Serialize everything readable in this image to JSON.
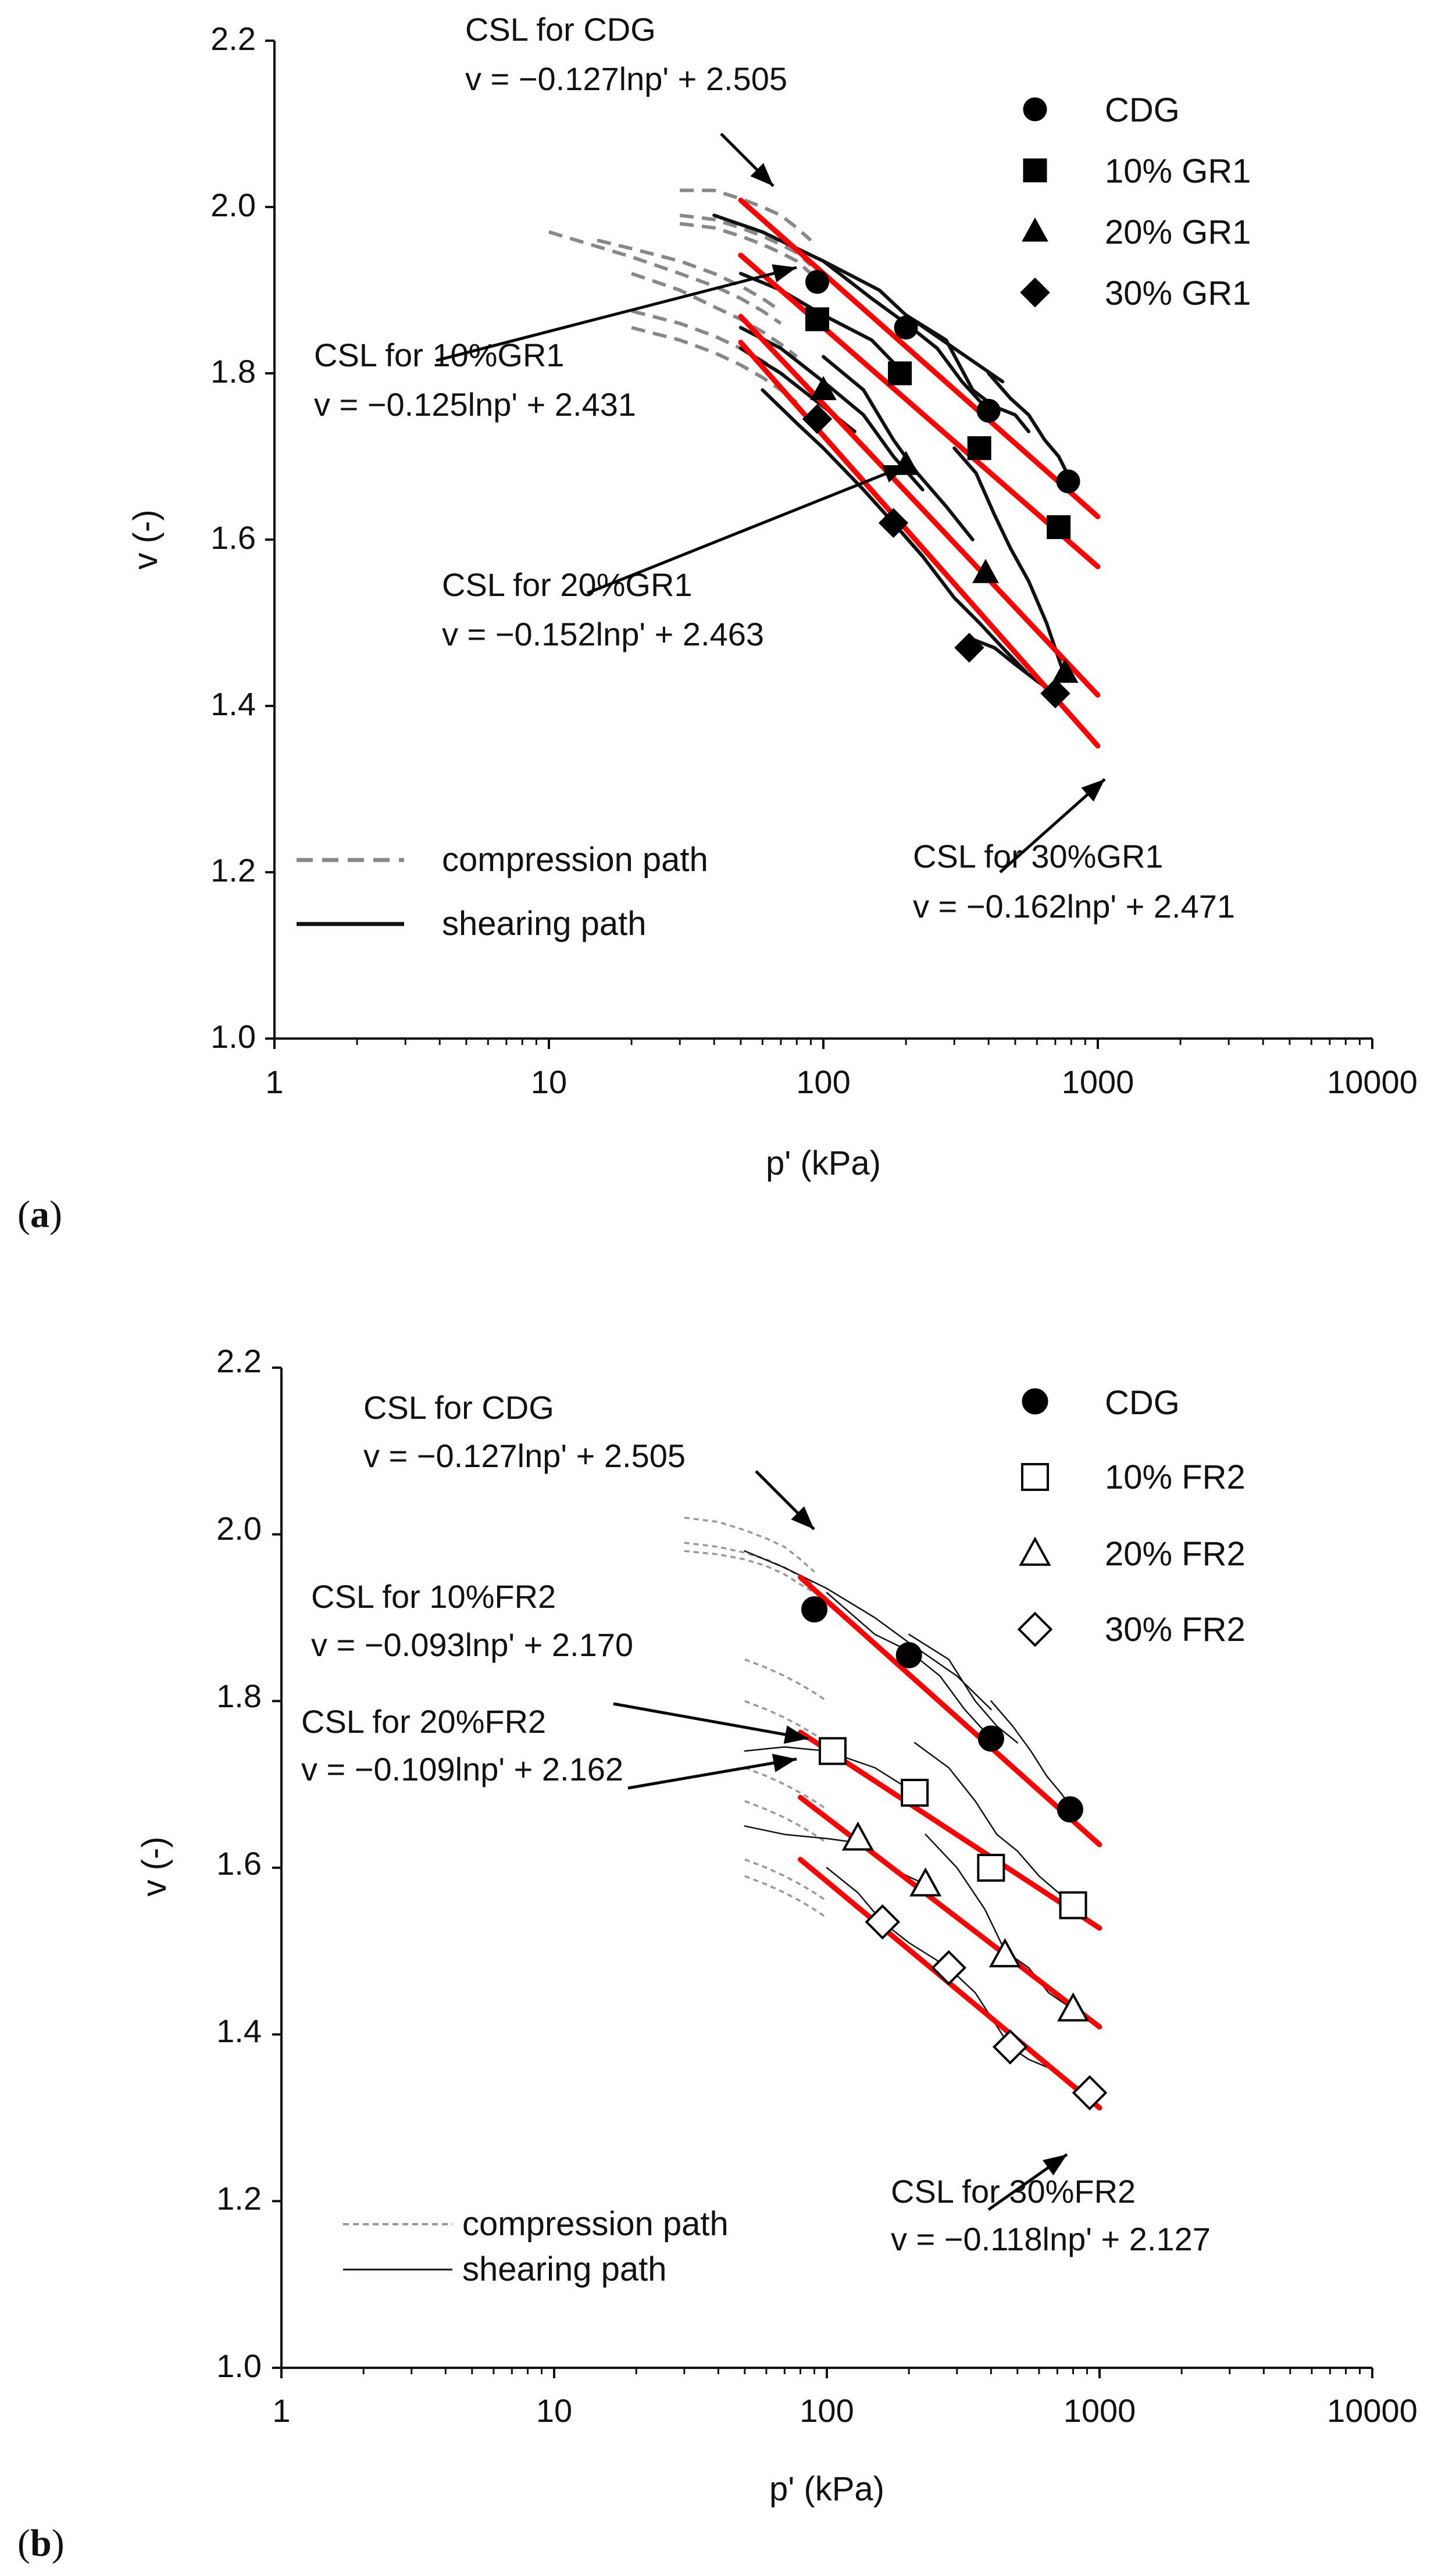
{
  "chart_data": [
    {
      "type": "scatter",
      "panel_label": "a",
      "xlabel": "p' (kPa)",
      "ylabel": "v (-)",
      "xscale": "log",
      "xlim": [
        1,
        10000
      ],
      "ylim": [
        1.0,
        2.2
      ],
      "xticks": [
        1,
        10,
        100,
        1000,
        10000
      ],
      "xtick_labels": [
        "1",
        "10",
        "100",
        "1000",
        "10000"
      ],
      "yticks": [
        1.0,
        1.2,
        1.4,
        1.6,
        1.8,
        2.0,
        2.2
      ],
      "ytick_labels": [
        "1.0",
        "1.2",
        "1.4",
        "1.6",
        "1.8",
        "2.0",
        "2.2"
      ],
      "line_legend": [
        {
          "label": "compression path",
          "style": "dashed"
        },
        {
          "label": "shearing path",
          "style": "solid"
        }
      ],
      "series": [
        {
          "name": "CDG",
          "marker": "circle",
          "filled": true,
          "x": [
            95,
            200,
            400,
            780
          ],
          "y": [
            1.91,
            1.855,
            1.755,
            1.67
          ]
        },
        {
          "name": "10% GR1",
          "marker": "square",
          "filled": true,
          "x": [
            95,
            190,
            370,
            720
          ],
          "y": [
            1.865,
            1.8,
            1.71,
            1.615
          ]
        },
        {
          "name": "20% GR1",
          "marker": "triangle",
          "filled": true,
          "x": [
            100,
            200,
            390,
            760
          ],
          "y": [
            1.78,
            1.69,
            1.56,
            1.44
          ]
        },
        {
          "name": "30% GR1",
          "marker": "diamond",
          "filled": true,
          "x": [
            95,
            180,
            340,
            700
          ],
          "y": [
            1.745,
            1.62,
            1.47,
            1.415
          ]
        }
      ],
      "csl": [
        {
          "name": "CSL for CDG",
          "equation": "v = −0.127lnp' + 2.505",
          "slope": -0.127,
          "intercept": 2.505,
          "x_range": [
            50,
            1000
          ]
        },
        {
          "name": "CSL for 10%GR1",
          "equation": "v = −0.125lnp' + 2.431",
          "slope": -0.125,
          "intercept": 2.431,
          "x_range": [
            50,
            1000
          ]
        },
        {
          "name": "CSL for 20%GR1",
          "equation": "v = −0.152lnp' + 2.463",
          "slope": -0.152,
          "intercept": 2.463,
          "x_range": [
            50,
            1000
          ]
        },
        {
          "name": "CSL for 30%GR1",
          "equation": "v = −0.162lnp' + 2.471",
          "slope": -0.162,
          "intercept": 2.471,
          "x_range": [
            50,
            1000
          ]
        }
      ],
      "compression_paths": [
        {
          "x": [
            30,
            40,
            50,
            60,
            70,
            80,
            90
          ],
          "y": [
            2.02,
            2.02,
            2.01,
            2.0,
            1.99,
            1.975,
            1.96
          ]
        },
        {
          "x": [
            30,
            40,
            50,
            60,
            70,
            80,
            90
          ],
          "y": [
            1.99,
            1.985,
            1.975,
            1.965,
            1.955,
            1.945,
            1.93
          ]
        },
        {
          "x": [
            30,
            40,
            50,
            60,
            70,
            80,
            90
          ],
          "y": [
            1.98,
            1.975,
            1.965,
            1.955,
            1.945,
            1.935,
            1.92
          ]
        },
        {
          "x": [
            10,
            20,
            30,
            40,
            50,
            60,
            70
          ],
          "y": [
            1.97,
            1.94,
            1.92,
            1.905,
            1.89,
            1.875,
            1.86
          ]
        },
        {
          "x": [
            15,
            20,
            30,
            40,
            50,
            60,
            70
          ],
          "y": [
            1.96,
            1.95,
            1.935,
            1.92,
            1.905,
            1.89,
            1.875
          ]
        },
        {
          "x": [
            20,
            30,
            40,
            50,
            60,
            70,
            80
          ],
          "y": [
            1.92,
            1.9,
            1.88,
            1.865,
            1.85,
            1.835,
            1.82
          ]
        },
        {
          "x": [
            20,
            30,
            40,
            50,
            60,
            70,
            80
          ],
          "y": [
            1.875,
            1.86,
            1.845,
            1.83,
            1.815,
            1.8,
            1.785
          ]
        },
        {
          "x": [
            20,
            30,
            40,
            50,
            60,
            70,
            80
          ],
          "y": [
            1.855,
            1.84,
            1.825,
            1.81,
            1.795,
            1.78,
            1.765
          ]
        }
      ],
      "shearing_paths": [
        {
          "x": [
            40,
            60,
            100,
            160,
            200,
            300,
            450
          ],
          "y": [
            1.99,
            1.97,
            1.935,
            1.9,
            1.87,
            1.83,
            1.79
          ]
        },
        {
          "x": [
            100,
            150,
            200,
            260,
            320,
            400
          ],
          "y": [
            1.935,
            1.89,
            1.86,
            1.83,
            1.79,
            1.755
          ]
        },
        {
          "x": [
            200,
            280,
            350,
            420,
            500,
            560
          ],
          "y": [
            1.87,
            1.84,
            1.78,
            1.76,
            1.75,
            1.73
          ]
        },
        {
          "x": [
            400,
            480,
            560,
            640,
            720,
            800
          ],
          "y": [
            1.8,
            1.77,
            1.75,
            1.72,
            1.7,
            1.67
          ]
        },
        {
          "x": [
            50,
            70,
            100,
            150,
            190
          ],
          "y": [
            1.92,
            1.9,
            1.87,
            1.84,
            1.805
          ]
        },
        {
          "x": [
            50,
            70,
            100,
            140,
            180,
            230
          ],
          "y": [
            1.855,
            1.83,
            1.79,
            1.75,
            1.7,
            1.66
          ]
        },
        {
          "x": [
            100,
            140,
            180,
            220,
            280,
            350
          ],
          "y": [
            1.82,
            1.78,
            1.72,
            1.68,
            1.64,
            1.6
          ]
        },
        {
          "x": [
            300,
            360,
            420,
            480,
            560,
            650,
            750
          ],
          "y": [
            1.71,
            1.68,
            1.63,
            1.59,
            1.55,
            1.5,
            1.44
          ]
        },
        {
          "x": [
            50,
            70,
            100,
            130
          ],
          "y": [
            1.83,
            1.8,
            1.76,
            1.73
          ]
        },
        {
          "x": [
            60,
            80,
            100,
            140,
            180,
            230
          ],
          "y": [
            1.78,
            1.74,
            1.71,
            1.66,
            1.62,
            1.58
          ]
        },
        {
          "x": [
            180,
            230,
            300,
            370,
            450,
            550
          ],
          "y": [
            1.62,
            1.58,
            1.53,
            1.5,
            1.47,
            1.44
          ]
        },
        {
          "x": [
            350,
            420,
            500,
            600,
            700
          ],
          "y": [
            1.48,
            1.47,
            1.45,
            1.43,
            1.415
          ]
        }
      ],
      "annotations": [
        {
          "lines": [
            "CSL for CDG",
            "v = −0.127lnp' + 2.505"
          ]
        },
        {
          "lines": [
            "CSL for 10%GR1",
            "v = −0.125lnp' + 2.431"
          ]
        },
        {
          "lines": [
            "CSL for 20%GR1",
            "v = −0.152lnp' + 2.463"
          ]
        },
        {
          "lines": [
            "CSL for 30%GR1",
            "v = −0.162lnp' + 2.471"
          ]
        }
      ]
    },
    {
      "type": "scatter",
      "panel_label": "b",
      "xlabel": "p' (kPa)",
      "ylabel": "v (-)",
      "xscale": "log",
      "xlim": [
        1,
        10000
      ],
      "ylim": [
        1.0,
        2.2
      ],
      "xticks": [
        1,
        10,
        100,
        1000,
        10000
      ],
      "xtick_labels": [
        "1",
        "10",
        "100",
        "1000",
        "10000"
      ],
      "yticks": [
        1.0,
        1.2,
        1.4,
        1.6,
        1.8,
        2.0,
        2.2
      ],
      "ytick_labels": [
        "1.0",
        "1.2",
        "1.4",
        "1.6",
        "1.8",
        "2.0",
        "2.2"
      ],
      "line_legend": [
        {
          "label": "compression path",
          "style": "dashed"
        },
        {
          "label": "shearing path",
          "style": "solid"
        }
      ],
      "series": [
        {
          "name": "CDG",
          "marker": "circle",
          "filled": true,
          "x": [
            90,
            200,
            400,
            780
          ],
          "y": [
            1.91,
            1.855,
            1.755,
            1.67
          ]
        },
        {
          "name": "10% FR2",
          "marker": "square",
          "filled": false,
          "x": [
            105,
            210,
            400,
            800
          ],
          "y": [
            1.74,
            1.69,
            1.6,
            1.555
          ]
        },
        {
          "name": "20% FR2",
          "marker": "triangle",
          "filled": false,
          "x": [
            130,
            230,
            450,
            800
          ],
          "y": [
            1.635,
            1.58,
            1.495,
            1.43
          ]
        },
        {
          "name": "30% FR2",
          "marker": "diamond",
          "filled": false,
          "x": [
            160,
            280,
            470,
            920
          ],
          "y": [
            1.535,
            1.48,
            1.385,
            1.33
          ]
        }
      ],
      "csl": [
        {
          "name": "CSL for CDG",
          "equation": "v = −0.127lnp' + 2.505",
          "slope": -0.127,
          "intercept": 2.505,
          "x_range": [
            80,
            1000
          ]
        },
        {
          "name": "CSL for 10%FR2",
          "equation": "v = −0.093lnp' + 2.170",
          "slope": -0.093,
          "intercept": 2.17,
          "x_range": [
            80,
            1000
          ]
        },
        {
          "name": "CSL for 20%FR2",
          "equation": "v = −0.109lnp' + 2.162",
          "slope": -0.109,
          "intercept": 2.162,
          "x_range": [
            80,
            1000
          ]
        },
        {
          "name": "CSL for 30%FR2",
          "equation": "v = −0.118lnp' + 2.127",
          "slope": -0.118,
          "intercept": 2.127,
          "x_range": [
            80,
            1000
          ]
        }
      ],
      "compression_paths": [
        {
          "x": [
            30,
            40,
            50,
            60,
            70,
            80,
            90
          ],
          "y": [
            2.02,
            2.015,
            2.005,
            1.995,
            1.985,
            1.97,
            1.955
          ]
        },
        {
          "x": [
            30,
            40,
            50,
            60,
            70,
            80,
            90
          ],
          "y": [
            1.99,
            1.985,
            1.978,
            1.97,
            1.96,
            1.95,
            1.94
          ]
        },
        {
          "x": [
            30,
            40,
            50,
            60,
            70,
            80,
            90
          ],
          "y": [
            1.98,
            1.976,
            1.97,
            1.962,
            1.952,
            1.94,
            1.93
          ]
        },
        {
          "x": [
            50,
            60,
            70,
            80,
            90,
            100
          ],
          "y": [
            1.85,
            1.84,
            1.83,
            1.82,
            1.81,
            1.8
          ]
        },
        {
          "x": [
            50,
            60,
            70,
            80,
            90,
            100
          ],
          "y": [
            1.8,
            1.79,
            1.78,
            1.77,
            1.76,
            1.75
          ]
        },
        {
          "x": [
            50,
            60,
            70,
            80,
            90,
            100
          ],
          "y": [
            1.72,
            1.71,
            1.7,
            1.69,
            1.68,
            1.67
          ]
        },
        {
          "x": [
            50,
            60,
            70,
            80,
            90,
            100
          ],
          "y": [
            1.68,
            1.67,
            1.66,
            1.65,
            1.64,
            1.63
          ]
        },
        {
          "x": [
            50,
            60,
            70,
            80,
            90,
            100
          ],
          "y": [
            1.61,
            1.6,
            1.59,
            1.58,
            1.57,
            1.56
          ]
        },
        {
          "x": [
            50,
            60,
            70,
            80,
            90,
            100
          ],
          "y": [
            1.59,
            1.58,
            1.57,
            1.56,
            1.55,
            1.54
          ]
        }
      ],
      "shearing_paths": [
        {
          "x": [
            50,
            70,
            100,
            150,
            200,
            300,
            400
          ],
          "y": [
            1.98,
            1.96,
            1.935,
            1.9,
            1.87,
            1.83,
            1.79
          ]
        },
        {
          "x": [
            100,
            150,
            200,
            260,
            320,
            400
          ],
          "y": [
            1.93,
            1.88,
            1.86,
            1.83,
            1.79,
            1.755
          ]
        },
        {
          "x": [
            200,
            280,
            350,
            420,
            500
          ],
          "y": [
            1.88,
            1.85,
            1.8,
            1.77,
            1.75
          ]
        },
        {
          "x": [
            400,
            480,
            560,
            640,
            720,
            800
          ],
          "y": [
            1.8,
            1.77,
            1.74,
            1.71,
            1.69,
            1.67
          ]
        },
        {
          "x": [
            50,
            70,
            100,
            150,
            210
          ],
          "y": [
            1.74,
            1.745,
            1.74,
            1.72,
            1.69
          ]
        },
        {
          "x": [
            210,
            280,
            350,
            420,
            500,
            600,
            800
          ],
          "y": [
            1.75,
            1.72,
            1.68,
            1.64,
            1.62,
            1.59,
            1.555
          ]
        },
        {
          "x": [
            50,
            70,
            100,
            130,
            170,
            230
          ],
          "y": [
            1.65,
            1.64,
            1.635,
            1.63,
            1.6,
            1.58
          ]
        },
        {
          "x": [
            230,
            300,
            380,
            450,
            550,
            650,
            800
          ],
          "y": [
            1.64,
            1.6,
            1.55,
            1.5,
            1.48,
            1.45,
            1.43
          ]
        },
        {
          "x": [
            100,
            130,
            160,
            200,
            280
          ],
          "y": [
            1.6,
            1.57,
            1.535,
            1.51,
            1.48
          ]
        },
        {
          "x": [
            280,
            350,
            420,
            470,
            550,
            650,
            800,
            920
          ],
          "y": [
            1.48,
            1.45,
            1.41,
            1.385,
            1.37,
            1.36,
            1.34,
            1.33
          ]
        }
      ],
      "annotations": [
        {
          "lines": [
            "CSL for CDG",
            "v = −0.127lnp' + 2.505"
          ]
        },
        {
          "lines": [
            "CSL for 10%FR2",
            "v = −0.093lnp' + 2.170"
          ]
        },
        {
          "lines": [
            "CSL for 20%FR2",
            "v = −0.109lnp' + 2.162"
          ]
        },
        {
          "lines": [
            "CSL for 30%FR2",
            "v = −0.118lnp' + 2.127"
          ]
        }
      ]
    }
  ],
  "colors": {
    "csl_line": "#ff0000",
    "compression_path": "#888888",
    "shearing_path": "#111111",
    "axis": "#111111"
  }
}
